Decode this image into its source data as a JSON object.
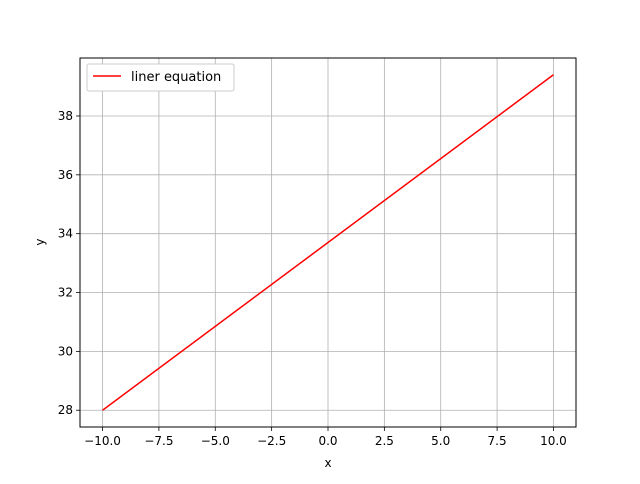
{
  "chart_data": {
    "type": "line",
    "xlabel": "x",
    "ylabel": "y",
    "xlim": [
      -11,
      11
    ],
    "ylim": [
      27.43,
      39.97
    ],
    "xticks": [
      -10,
      -7.5,
      -5,
      -2.5,
      0,
      2.5,
      5,
      7.5,
      10
    ],
    "xtick_labels": [
      "−10.0",
      "−7.5",
      "−5.0",
      "−2.5",
      "0.0",
      "2.5",
      "5.0",
      "7.5",
      "10.0"
    ],
    "yticks": [
      28,
      30,
      32,
      34,
      36,
      38
    ],
    "ytick_labels": [
      "28",
      "30",
      "32",
      "34",
      "36",
      "38"
    ],
    "grid": true,
    "legend_position": "top-left",
    "series": [
      {
        "name": "liner equation",
        "color": "#ff0000",
        "x": [
          -10,
          10
        ],
        "y": [
          28.0,
          39.4
        ]
      }
    ]
  }
}
